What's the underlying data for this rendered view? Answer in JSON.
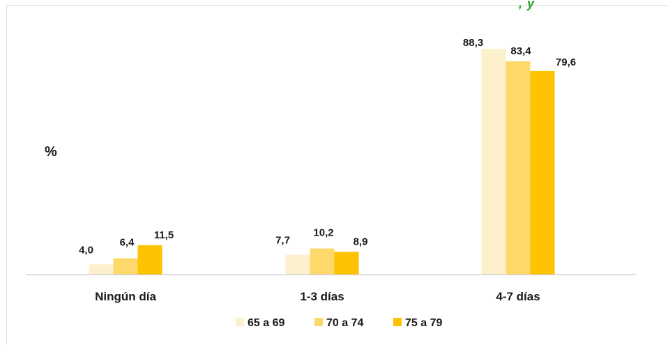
{
  "chart_data": {
    "type": "bar",
    "title_fragment": ", y",
    "ylabel": "%",
    "categories": [
      "Ningún día",
      "1-3 días",
      "4-7 días"
    ],
    "series": [
      {
        "name": "65 a 69",
        "color": "#fdf0cc",
        "values": [
          4.0,
          7.7,
          88.3
        ],
        "labels": [
          "4,0",
          "7,7",
          "88,3"
        ]
      },
      {
        "name": "70 a 74",
        "color": "#fdd86a",
        "values": [
          6.4,
          10.2,
          83.4
        ],
        "labels": [
          "6,4",
          "10,2",
          "83,4"
        ]
      },
      {
        "name": "75 a 79",
        "color": "#fdc200",
        "values": [
          11.5,
          8.9,
          79.6
        ],
        "labels": [
          "11,5",
          "8,9",
          "79,6"
        ]
      }
    ],
    "ylim": [
      0,
      100
    ],
    "grid": false,
    "legend_position": "bottom",
    "axis_color": "#bfbfbf",
    "text_color": "#1a1a1a"
  }
}
